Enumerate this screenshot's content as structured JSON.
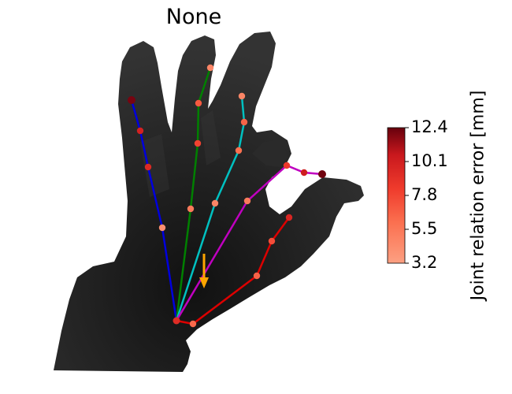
{
  "chart_data": {
    "type": "scatter",
    "title": "None",
    "colorbar": {
      "label": "Joint relation error [mm]",
      "min": 3.2,
      "max": 12.4,
      "ticks": [
        "12.4",
        "10.1",
        "7.8",
        "5.5",
        "3.2"
      ],
      "colors": [
        "#fca082",
        "#fb7050",
        "#ef3b2c",
        "#c9181d",
        "#67000d"
      ]
    },
    "background": "depth image of an open hand (grayscale)",
    "arrow": {
      "color": "#ffa500",
      "meaning": "annotation arrow"
    },
    "fingers": [
      {
        "name": "thumb-chain",
        "color": "#dd0000",
        "joint_errors": [
          5.8,
          6.1,
          7.0,
          9.2,
          9.0
        ]
      },
      {
        "name": "blue-chain",
        "color": "#0000dd",
        "joint_errors": [
          4.0,
          9.0,
          9.5,
          12.0
        ]
      },
      {
        "name": "green-chain",
        "color": "#008000",
        "joint_errors": [
          5.0,
          7.5,
          6.5,
          4.5
        ]
      },
      {
        "name": "cyan-chain",
        "color": "#00c0c0",
        "joint_errors": [
          4.5,
          5.5,
          6.0,
          4.5
        ]
      },
      {
        "name": "magenta-chain",
        "color": "#c000c0",
        "joint_errors": [
          5.0,
          8.0,
          9.8,
          12.2
        ]
      }
    ],
    "wrist_error": 8.8,
    "grid": false
  }
}
